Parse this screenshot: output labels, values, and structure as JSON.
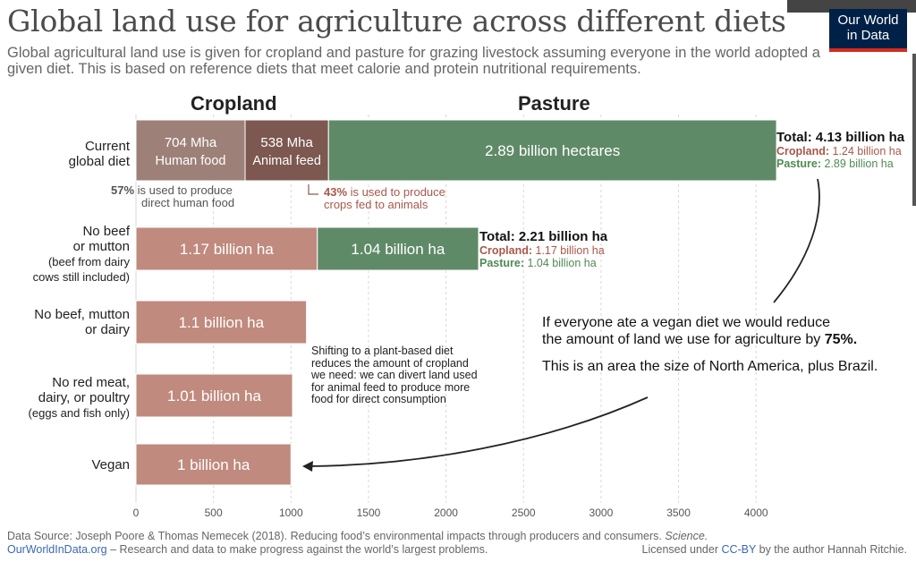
{
  "header": {
    "title": "Global land use for agriculture across different diets",
    "subtitle": "Global agricultural land use is given for cropland and pasture for grazing livestock assuming everyone in the world adopted a given diet. This is based on reference diets that meet calorie and protein nutritional requirements.",
    "logo_line1": "Our World",
    "logo_line2": "in Data"
  },
  "colors": {
    "cropland_head": "#7b4a3c",
    "pasture_head": "#4e7d58",
    "human_food": "#9d8179",
    "animal_feed": "#7c5850",
    "cropland_bar": "#c08a7e",
    "pasture_bar": "#5f8a67",
    "cropland_text": "#a8584a",
    "pasture_text": "#4f8a52"
  },
  "chart_data": {
    "type": "bar",
    "orientation": "horizontal",
    "stacked": true,
    "section_headers": [
      "Cropland",
      "Pasture"
    ],
    "categories": [
      "Current global diet",
      "No beef or mutton (beef from dairy cows still included)",
      "No beef, mutton or dairy",
      "No red meat, dairy, or poultry (eggs and fish only)",
      "Vegan"
    ],
    "series": [
      {
        "name": "Human food",
        "values": [
          704,
          null,
          null,
          null,
          null
        ]
      },
      {
        "name": "Animal feed",
        "values": [
          538,
          null,
          null,
          null,
          null
        ]
      },
      {
        "name": "Cropland",
        "values": [
          null,
          1170,
          1100,
          1010,
          1000
        ]
      },
      {
        "name": "Pasture",
        "values": [
          2890,
          1040,
          null,
          null,
          null
        ]
      }
    ],
    "xlim": [
      0,
      4100
    ],
    "xticks": [
      "0",
      "500",
      "1000",
      "1500",
      "2000",
      "2500",
      "3000",
      "3500",
      "4000"
    ],
    "xlabel": "",
    "ylabel": "",
    "grid": true
  },
  "labels": {
    "current": {
      "row_line1": "Current",
      "row_line2": "global diet",
      "human_value": "704 Mha",
      "human_name": "Human food",
      "feed_value": "538 Mha",
      "feed_name": "Animal feed",
      "pasture_text": "2.89 billion hectares",
      "total": "Total: 4.13 billion ha",
      "cropland_key": "Cropland:",
      "cropland_val": " 1.24 billion ha",
      "pasture_key": "Pasture:",
      "pasture_val": " 2.89 billion ha",
      "note_human_pct": "57%",
      "note_human_line1": " is used to produce",
      "note_human_line2": "direct human food",
      "note_feed_pct": "43%",
      "note_feed_line1": " is used to produce",
      "note_feed_line2": "crops fed to animals"
    },
    "no_beef": {
      "row_line1": "No beef",
      "row_line2": "or mutton",
      "row_line3": "(beef from dairy",
      "row_line4": "cows still included)",
      "cropland_text": "1.17 billion ha",
      "pasture_text": "1.04 billion ha",
      "total": "Total: 2.21 billion ha",
      "cropland_key": "Cropland:",
      "cropland_val": " 1.17 billion ha",
      "pasture_key": "Pasture:",
      "pasture_val": " 1.04 billion ha"
    },
    "no_dairy": {
      "row_line1": "No beef, mutton",
      "row_line2": "or dairy",
      "bar_text": "1.1 billion ha"
    },
    "eggs_fish": {
      "row_line1": "No red meat,",
      "row_line2": "dairy, or poultry",
      "row_line3": "(eggs and fish only)",
      "bar_text": "1.01 billion ha"
    },
    "vegan": {
      "row_line1": "Vegan",
      "bar_text": "1 billion ha"
    }
  },
  "annotations": {
    "shift_note": "Shifting to a plant-based diet reduces the amount of cropland we need: we can divert land used for animal feed to produce more food for direct consumption",
    "callout_line1": "If everyone ate a vegan diet we would reduce",
    "callout_line2_pre": "the amount of land we use for agriculture by ",
    "callout_pct": "75%.",
    "callout_line3": "This is an area the size of North America, plus Brazil."
  },
  "footer": {
    "source_pre": "Data Source: Joseph Poore & Thomas Nemecek (2018). Reducing food’s environmental impacts through producers and consumers. ",
    "source_journal": "Science.",
    "site": "OurWorldInData.org",
    "site_desc": " – Research and data to make progress against the world’s largest problems.",
    "license_pre": "Licensed under ",
    "license_link": "CC-BY",
    "license_post": " by the author Hannah Ritchie."
  }
}
